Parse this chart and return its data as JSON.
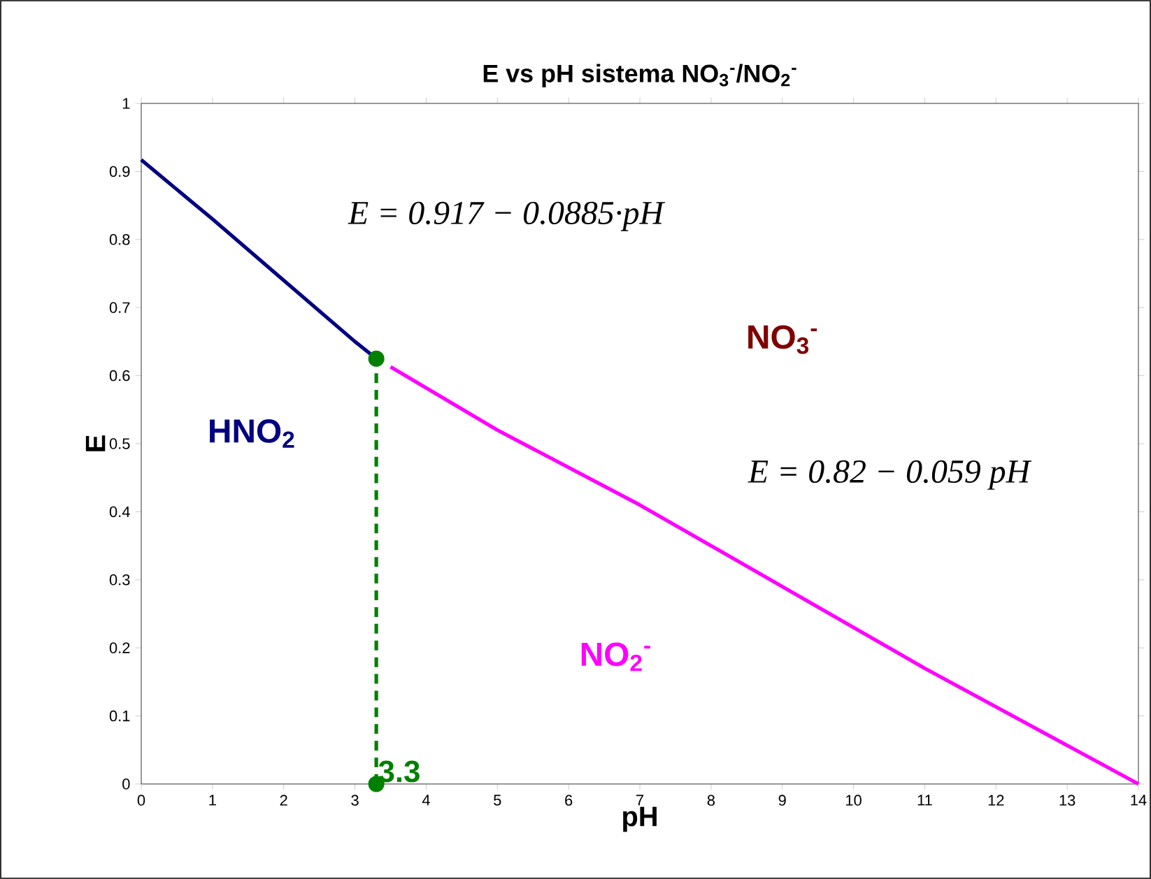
{
  "chart_data": {
    "type": "line",
    "title": "E vs pH  sistema NO$_{3}$$^{-}$/NO$_{2}$$^{-}$",
    "xlabel": "pH",
    "ylabel": "E",
    "xlim": [
      0,
      14
    ],
    "ylim": [
      0,
      1
    ],
    "xticks": [
      0,
      1,
      2,
      3,
      4,
      5,
      6,
      7,
      8,
      9,
      10,
      11,
      12,
      13,
      14
    ],
    "yticks": [
      0,
      0.1,
      0.2,
      0.3,
      0.4,
      0.5,
      0.6,
      0.7,
      0.8,
      0.9,
      1
    ],
    "grid": false,
    "series": [
      {
        "color": "#000080",
        "x": [
          0,
          1,
          2,
          3,
          3.3
        ],
        "values": [
          0.917,
          0.83,
          0.74,
          0.65,
          0.625
        ],
        "marker": "none",
        "line_style": "solid"
      },
      {
        "color": "#ff00ff",
        "x": [
          3.5,
          5,
          7,
          9,
          11,
          14
        ],
        "values": [
          0.613,
          0.52,
          0.41,
          0.29,
          0.17,
          0.0
        ],
        "marker": "none",
        "line_style": "solid"
      },
      {
        "color": "#008000",
        "x": [
          3.3,
          3.3
        ],
        "values": [
          0,
          0.625
        ],
        "marker": "circle",
        "line_style": "dashed"
      }
    ],
    "annotations": [
      "E = 0.917 − 0.0885·pH",
      "E = 0.82 − 0.059 pH",
      "HNO$_{2}$",
      "NO$_{3}$$^{-}$",
      "NO$_{2}$$^{-}$",
      {
        "text": "3.3",
        "x": 3.3,
        "y": 0
      }
    ]
  }
}
